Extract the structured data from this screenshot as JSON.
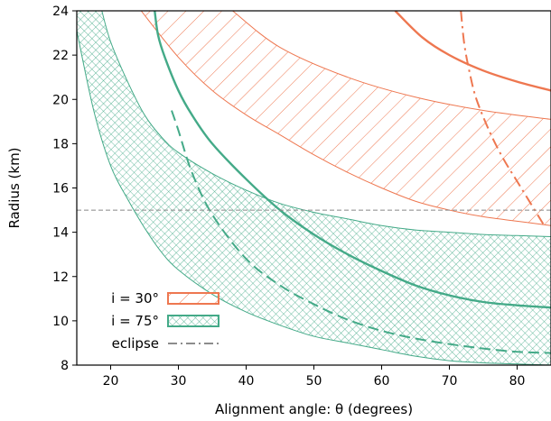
{
  "chart_data": {
    "type": "area",
    "xlabel": "Alignment angle: θ (degrees)",
    "ylabel": "Radius (km)",
    "xlim": [
      15,
      85
    ],
    "ylim": [
      8,
      24
    ],
    "xticks": [
      20,
      30,
      40,
      50,
      60,
      70,
      80
    ],
    "yticks": [
      8,
      10,
      12,
      14,
      16,
      18,
      20,
      22,
      24
    ],
    "colors": {
      "i30": "#ee7750",
      "i75": "#44aa88",
      "reference": "#888888",
      "legend_eclipse": "#666666"
    },
    "reference_line": {
      "y": 15,
      "style": "dashed"
    },
    "legend": {
      "placement": "bottom-left",
      "entries": [
        {
          "label": "i = 30°",
          "pattern": "diagonal-hatch",
          "color": "#ee7750"
        },
        {
          "label": "i = 75°",
          "pattern": "cross-hatch",
          "color": "#44aa88"
        },
        {
          "label": "eclipse",
          "pattern": "dash-dot",
          "color": "#666666"
        }
      ]
    },
    "series": [
      {
        "inclination": "i = 30°",
        "role": "band",
        "x_upper": [
          38,
          45,
          55,
          65,
          75,
          85
        ],
        "upper": [
          24,
          22.35,
          21.0,
          20.1,
          19.5,
          19.1
        ],
        "x_lower": [
          24.5,
          30,
          35,
          40,
          45,
          50,
          55,
          60,
          65,
          70,
          75,
          80,
          85
        ],
        "lower": [
          24,
          21.9,
          20.4,
          19.3,
          18.4,
          17.5,
          16.7,
          16.0,
          15.4,
          15.0,
          14.7,
          14.5,
          14.3
        ]
      },
      {
        "inclination": "i = 30°",
        "role": "center",
        "x": [
          62,
          66,
          70,
          75,
          80,
          85
        ],
        "y": [
          24,
          22.8,
          22.0,
          21.3,
          20.8,
          20.4
        ]
      },
      {
        "inclination": "i = 30°",
        "role": "eclipse",
        "x": [
          71.7,
          72.2,
          73,
          74,
          76,
          78,
          80,
          82,
          84
        ],
        "y": [
          24,
          22.5,
          21.2,
          20.0,
          18.5,
          17.3,
          16.3,
          15.3,
          14.3
        ]
      },
      {
        "inclination": "i = 75°",
        "role": "band",
        "x_upper": [
          18.7,
          20,
          22.5,
          25,
          27.5,
          30,
          35,
          40,
          45,
          50,
          55,
          60,
          65,
          70,
          75,
          80,
          85
        ],
        "upper": [
          24,
          22.6,
          20.8,
          19.3,
          18.3,
          17.6,
          16.65,
          15.9,
          15.3,
          14.9,
          14.6,
          14.3,
          14.1,
          14.0,
          13.9,
          13.85,
          13.8
        ],
        "x_lower": [
          15,
          17.5,
          20,
          22.5,
          25,
          27.5,
          30,
          35,
          40,
          45,
          50,
          55,
          60,
          65,
          70,
          75,
          80,
          85
        ],
        "lower": [
          23.1,
          19.5,
          17.0,
          15.5,
          14.2,
          13.1,
          12.3,
          11.2,
          10.4,
          9.8,
          9.3,
          9.0,
          8.7,
          8.4,
          8.2,
          8.1,
          8.05,
          8.0
        ]
      },
      {
        "inclination": "i = 75°",
        "role": "center",
        "x": [
          26.5,
          27,
          28,
          30,
          32,
          35,
          40,
          45,
          50,
          55,
          60,
          65,
          70,
          75,
          80,
          85
        ],
        "y": [
          24,
          22.9,
          21.9,
          20.4,
          19.3,
          18.0,
          16.4,
          15.0,
          13.9,
          13.0,
          12.25,
          11.6,
          11.15,
          10.85,
          10.7,
          10.6
        ]
      },
      {
        "inclination": "i = 75°",
        "role": "eclipse",
        "x": [
          29,
          30,
          32,
          35,
          40,
          45,
          50,
          55,
          60,
          65,
          70,
          75,
          80,
          85
        ],
        "y": [
          19.5,
          18.6,
          16.7,
          14.8,
          12.8,
          11.6,
          10.75,
          10.05,
          9.55,
          9.2,
          8.95,
          8.75,
          8.6,
          8.55
        ]
      }
    ]
  }
}
